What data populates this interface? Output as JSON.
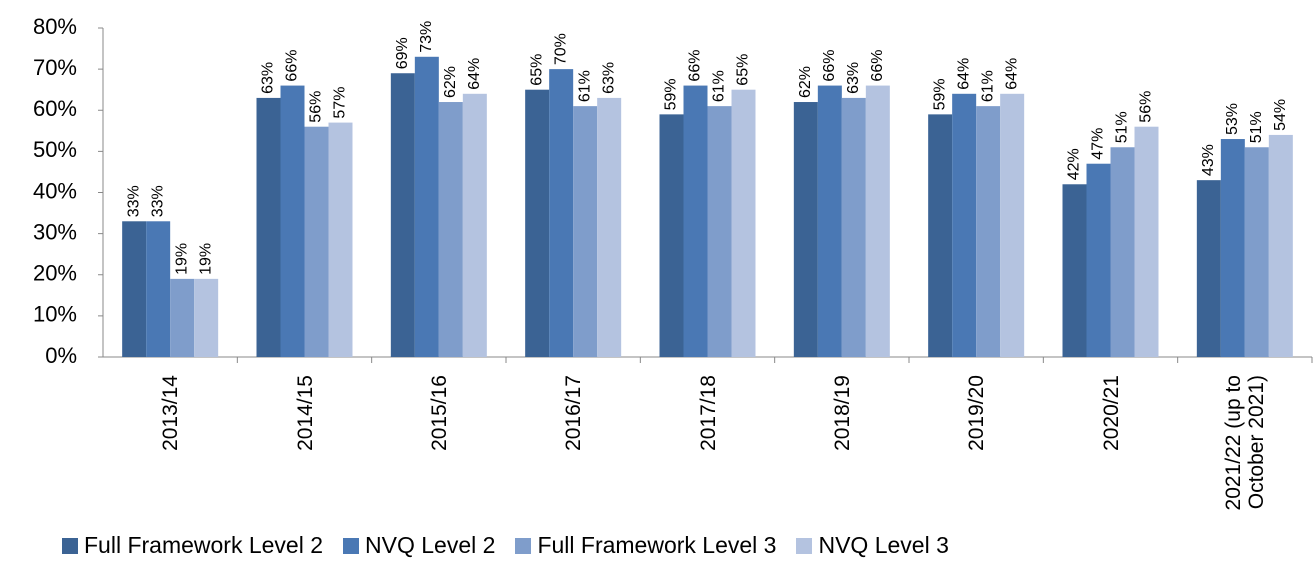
{
  "chart_data": {
    "type": "bar",
    "categories": [
      "2013/14",
      "2014/15",
      "2015/16",
      "2016/17",
      "2017/18",
      "2018/19",
      "2019/20",
      "2020/21",
      "2021/22 (up to October 2021)"
    ],
    "series": [
      {
        "name": "Full Framework Level 2",
        "color": "#3b6394",
        "values": [
          33,
          63,
          69,
          65,
          59,
          62,
          59,
          42,
          43
        ],
        "value_labels": [
          "33%",
          "63%",
          "69%",
          "65%",
          "59%",
          "62%",
          "59%",
          "42%",
          "43%"
        ]
      },
      {
        "name": "NVQ Level 2",
        "color": "#4a78b4",
        "values": [
          33,
          66,
          73,
          70,
          66,
          66,
          64,
          47,
          53
        ],
        "value_labels": [
          "33%",
          "66%",
          "73%",
          "70%",
          "66%",
          "66%",
          "64%",
          "47%",
          "53%"
        ]
      },
      {
        "name": "Full Framework Level 3",
        "color": "#7f9dcb",
        "values": [
          19,
          56,
          62,
          61,
          61,
          63,
          61,
          51,
          51
        ],
        "value_labels": [
          "19%",
          "56%",
          "62%",
          "61%",
          "61%",
          "63%",
          "61%",
          "51%",
          "51%"
        ]
      },
      {
        "name": "NVQ Level 3",
        "color": "#b4c3e0",
        "values": [
          19,
          57,
          64,
          63,
          65,
          66,
          64,
          56,
          54
        ],
        "value_labels": [
          "19%",
          "57%",
          "64%",
          "63%",
          "65%",
          "66%",
          "64%",
          "56%",
          "54%"
        ]
      }
    ],
    "ylim": [
      0,
      80
    ],
    "yticks": [
      {
        "value": 0,
        "label": "0%"
      },
      {
        "value": 10,
        "label": "10%"
      },
      {
        "value": 20,
        "label": "20%"
      },
      {
        "value": 30,
        "label": "30%"
      },
      {
        "value": 40,
        "label": "40%"
      },
      {
        "value": 50,
        "label": "50%"
      },
      {
        "value": 60,
        "label": "60%"
      },
      {
        "value": 70,
        "label": "70%"
      },
      {
        "value": 80,
        "label": "80%"
      }
    ],
    "legend": "bottom"
  }
}
